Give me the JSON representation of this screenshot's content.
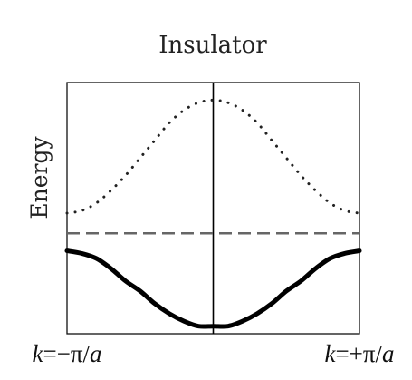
{
  "chart_data": {
    "type": "line",
    "title": "Insulator",
    "xlabel": "",
    "ylabel": "Energy",
    "x_ticks": [
      {
        "value": -1,
        "prefix": "k=−π/",
        "var": "a"
      },
      {
        "value": 1,
        "prefix": "k=+π/",
        "var": "a"
      }
    ],
    "xlim": [
      -1,
      1
    ],
    "ylim": [
      0,
      1
    ],
    "grid": false,
    "legend": "none",
    "center_line_x": 0,
    "series": [
      {
        "style": "dotted",
        "color": "#222222",
        "x": [
          -1,
          -0.9,
          -0.8,
          -0.7,
          -0.6,
          -0.5,
          -0.4,
          -0.3,
          -0.2,
          -0.1,
          0,
          0.1,
          0.2,
          0.3,
          0.4,
          0.5,
          0.6,
          0.7,
          0.8,
          0.9,
          1
        ],
        "y": [
          0.48,
          0.49,
          0.52,
          0.57,
          0.63,
          0.7,
          0.77,
          0.84,
          0.89,
          0.92,
          0.93,
          0.92,
          0.89,
          0.84,
          0.77,
          0.7,
          0.63,
          0.57,
          0.52,
          0.49,
          0.48
        ]
      },
      {
        "style": "dashed",
        "color": "#666666",
        "x": [
          -1,
          1
        ],
        "y": [
          0.4,
          0.4
        ]
      },
      {
        "style": "solid",
        "color": "#000000",
        "x": [
          -1,
          -0.9,
          -0.8,
          -0.7,
          -0.6,
          -0.5,
          -0.4,
          -0.3,
          -0.2,
          -0.1,
          0,
          0.1,
          0.2,
          0.3,
          0.4,
          0.5,
          0.6,
          0.7,
          0.8,
          0.9,
          1
        ],
        "y": [
          0.33,
          0.32,
          0.3,
          0.26,
          0.21,
          0.17,
          0.12,
          0.08,
          0.05,
          0.03,
          0.03,
          0.03,
          0.05,
          0.08,
          0.12,
          0.17,
          0.21,
          0.26,
          0.3,
          0.32,
          0.33
        ]
      }
    ]
  }
}
